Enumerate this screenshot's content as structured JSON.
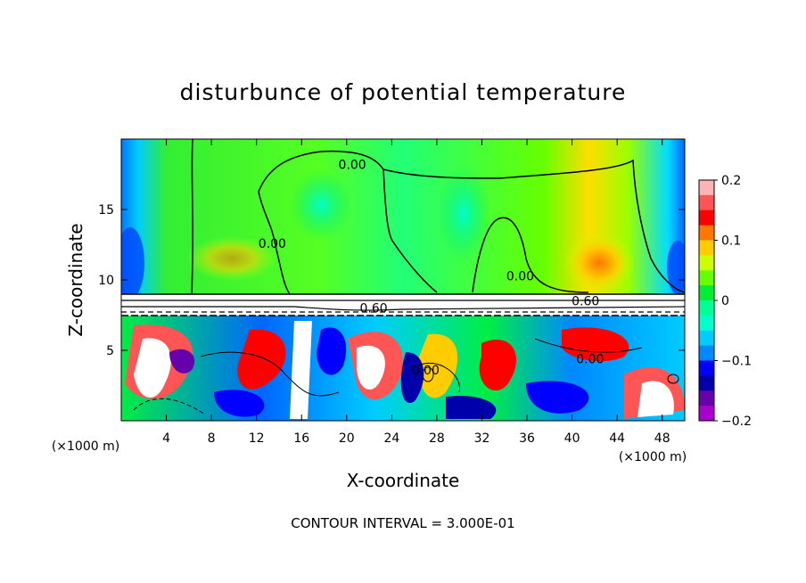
{
  "chart_data": {
    "type": "heatmap",
    "title": "disturbunce of potential temperature",
    "xlabel": "X-coordinate",
    "ylabel": "Z-coordinate",
    "x_unit_left": "(×1000 m)",
    "x_unit_right": "(×1000 m)",
    "xlim": [
      0,
      50
    ],
    "ylim": [
      0,
      20
    ],
    "x_ticks": [
      4,
      8,
      12,
      16,
      20,
      24,
      28,
      32,
      36,
      40,
      44,
      48
    ],
    "y_ticks": [
      5,
      10,
      15
    ],
    "colorbar": {
      "range": [
        -0.2,
        0.2
      ],
      "tick_values": [
        0.2,
        0.1,
        0,
        -0.1,
        -0.2
      ],
      "tick_labels": [
        "0.2",
        "0.1",
        "0",
        "−0.1",
        "−0.2"
      ],
      "colors": [
        "#ffb3b3",
        "#ff5555",
        "#ff0000",
        "#ff7700",
        "#ffcc00",
        "#ccff00",
        "#66ff00",
        "#00ee33",
        "#00ff99",
        "#00ffcc",
        "#00ccff",
        "#0088ff",
        "#0000ff",
        "#0000aa",
        "#6600aa",
        "#aa00cc"
      ]
    },
    "contour_labels": [
      {
        "text": "0.00",
        "x": 20.5,
        "z": 18.2
      },
      {
        "text": "0.00",
        "x": 13.4,
        "z": 12.6
      },
      {
        "text": "0.00",
        "x": 35.4,
        "z": 10.3
      },
      {
        "text": "0.60",
        "x": 41.2,
        "z": 8.5
      },
      {
        "text": "0.60",
        "x": 22.4,
        "z": 8.0
      },
      {
        "text": "0.00",
        "x": 41.6,
        "z": 4.4
      },
      {
        "text": "0.00",
        "x": 27.0,
        "z": 3.6
      }
    ],
    "annotation": "CONTOUR INTERVAL = 3.000E-01"
  }
}
